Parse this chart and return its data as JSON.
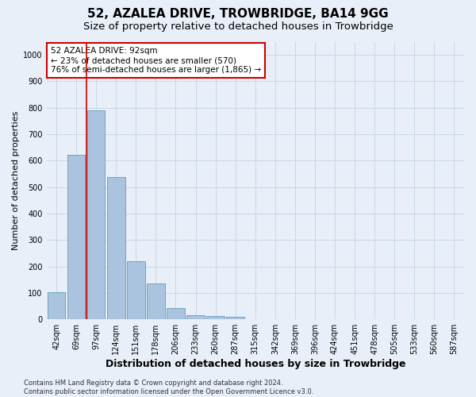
{
  "title": "52, AZALEA DRIVE, TROWBRIDGE, BA14 9GG",
  "subtitle": "Size of property relative to detached houses in Trowbridge",
  "xlabel": "Distribution of detached houses by size in Trowbridge",
  "ylabel": "Number of detached properties",
  "footer_line1": "Contains HM Land Registry data © Crown copyright and database right 2024.",
  "footer_line2": "Contains public sector information licensed under the Open Government Licence v3.0.",
  "bar_labels": [
    "42sqm",
    "69sqm",
    "97sqm",
    "124sqm",
    "151sqm",
    "178sqm",
    "206sqm",
    "233sqm",
    "260sqm",
    "287sqm",
    "315sqm",
    "342sqm",
    "369sqm",
    "396sqm",
    "424sqm",
    "451sqm",
    "478sqm",
    "505sqm",
    "533sqm",
    "560sqm",
    "587sqm"
  ],
  "bar_values": [
    102,
    622,
    790,
    538,
    220,
    135,
    43,
    17,
    13,
    9,
    0,
    0,
    0,
    0,
    0,
    0,
    0,
    0,
    0,
    0,
    0
  ],
  "bar_color": "#aac4df",
  "bar_edge_color": "#6699bb",
  "vline_color": "#cc0000",
  "annotation_text": "52 AZALEA DRIVE: 92sqm\n← 23% of detached houses are smaller (570)\n76% of semi-detached houses are larger (1,865) →",
  "annotation_box_facecolor": "#ffffff",
  "annotation_box_edgecolor": "#cc0000",
  "ylim": [
    0,
    1050
  ],
  "yticks": [
    0,
    100,
    200,
    300,
    400,
    500,
    600,
    700,
    800,
    900,
    1000
  ],
  "grid_color": "#c8d8e8",
  "background_color": "#e8eff8",
  "title_fontsize": 11,
  "subtitle_fontsize": 9.5,
  "ylabel_fontsize": 8,
  "xlabel_fontsize": 9,
  "tick_fontsize": 7,
  "footer_fontsize": 6,
  "annotation_fontsize": 7.5
}
